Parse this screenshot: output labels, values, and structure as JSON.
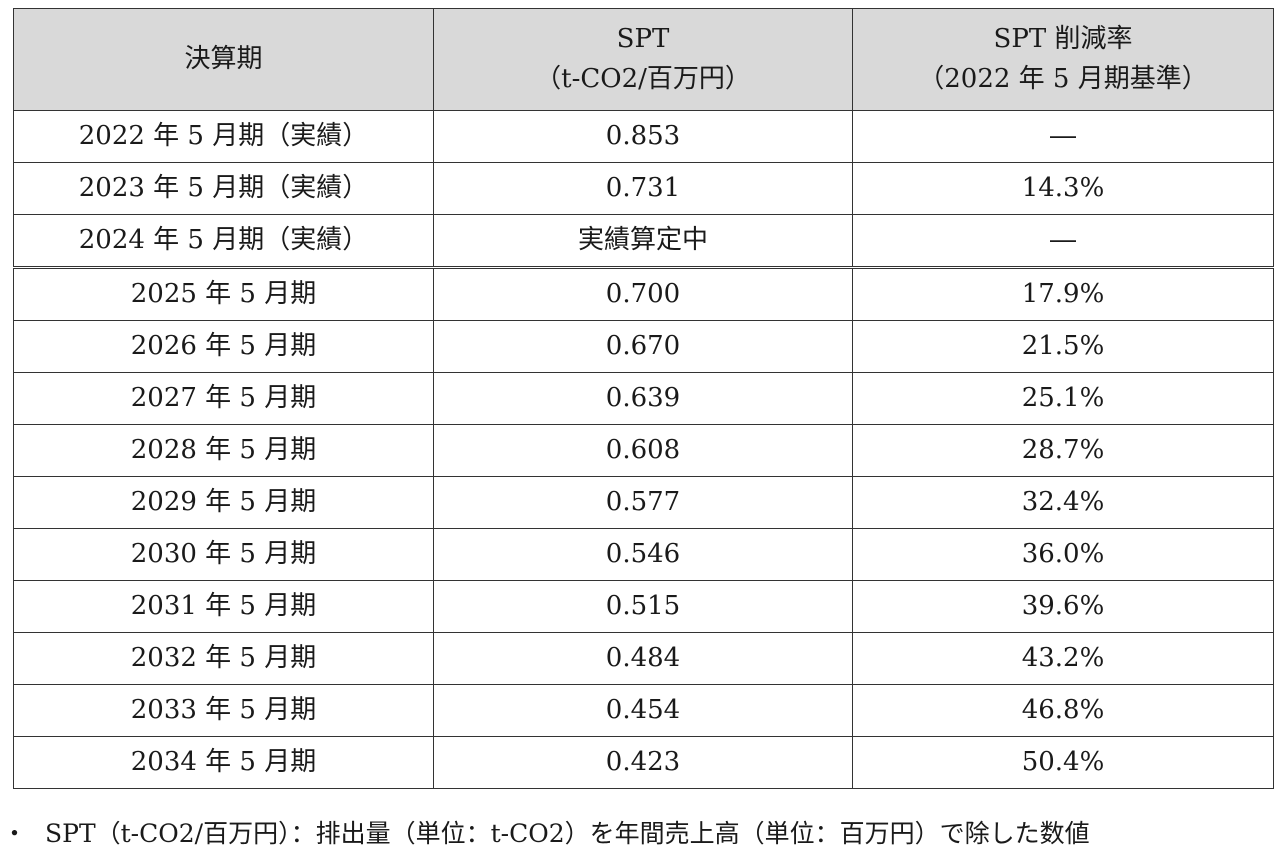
{
  "table": {
    "headers": [
      {
        "line1": "決算期",
        "line2": ""
      },
      {
        "line1": "SPT",
        "line2": "（t-CO2/百万円）"
      },
      {
        "line1": "SPT 削減率",
        "line2": "（2022 年 5 月期基準）"
      }
    ],
    "rows": [
      {
        "period": "2022 年 5 月期（実績）",
        "spt": "0.853",
        "rate": "―"
      },
      {
        "period": "2023 年 5 月期（実績）",
        "spt": "0.731",
        "rate": "14.3%"
      },
      {
        "period": "2024 年 5 月期（実績）",
        "spt": "実績算定中",
        "rate": "―"
      },
      {
        "period": "2025 年 5 月期",
        "spt": "0.700",
        "rate": "17.9%"
      },
      {
        "period": "2026 年 5 月期",
        "spt": "0.670",
        "rate": "21.5%"
      },
      {
        "period": "2027 年 5 月期",
        "spt": "0.639",
        "rate": "25.1%"
      },
      {
        "period": "2028 年 5 月期",
        "spt": "0.608",
        "rate": "28.7%"
      },
      {
        "period": "2029 年 5 月期",
        "spt": "0.577",
        "rate": "32.4%"
      },
      {
        "period": "2030 年 5 月期",
        "spt": "0.546",
        "rate": "36.0%"
      },
      {
        "period": "2031 年 5 月期",
        "spt": "0.515",
        "rate": "39.6%"
      },
      {
        "period": "2032 年 5 月期",
        "spt": "0.484",
        "rate": "43.2%"
      },
      {
        "period": "2033 年 5 月期",
        "spt": "0.454",
        "rate": "46.8%"
      },
      {
        "period": "2034 年 5 月期",
        "spt": "0.423",
        "rate": "50.4%"
      }
    ]
  },
  "note": {
    "bullet": "・",
    "text": "SPT（t-CO2/百万円）：排出量（単位：t-CO2）を年間売上高（単位：百万円）で除した数値"
  },
  "colors": {
    "header_bg": "#d9d9d9",
    "border": "#333333"
  }
}
